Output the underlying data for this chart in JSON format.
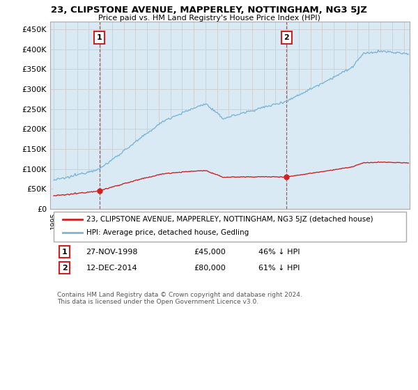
{
  "title": "23, CLIPSTONE AVENUE, MAPPERLEY, NOTTINGHAM, NG3 5JZ",
  "subtitle": "Price paid vs. HM Land Registry's House Price Index (HPI)",
  "hpi_color": "#7ab5d8",
  "hpi_fill_color": "#daeaf5",
  "price_color": "#cc2222",
  "annotation_color": "#cc2222",
  "grid_color": "#cccccc",
  "bg_color": "#ffffff",
  "ylim": [
    0,
    470000
  ],
  "yticks": [
    0,
    50000,
    100000,
    150000,
    200000,
    250000,
    300000,
    350000,
    400000,
    450000
  ],
  "xlim_start": 1994.7,
  "xlim_end": 2025.5,
  "legend_label_red": "23, CLIPSTONE AVENUE, MAPPERLEY, NOTTINGHAM, NG3 5JZ (detached house)",
  "legend_label_blue": "HPI: Average price, detached house, Gedling",
  "purchase1_date": "27-NOV-1998",
  "purchase1_price": "£45,000",
  "purchase1_hpi": "46% ↓ HPI",
  "purchase1_x": 1998.92,
  "purchase1_y": 45000,
  "purchase2_date": "12-DEC-2014",
  "purchase2_price": "£80,000",
  "purchase2_hpi": "61% ↓ HPI",
  "purchase2_x": 2014.96,
  "purchase2_y": 80000,
  "footer": "Contains HM Land Registry data © Crown copyright and database right 2024.\nThis data is licensed under the Open Government Licence v3.0."
}
